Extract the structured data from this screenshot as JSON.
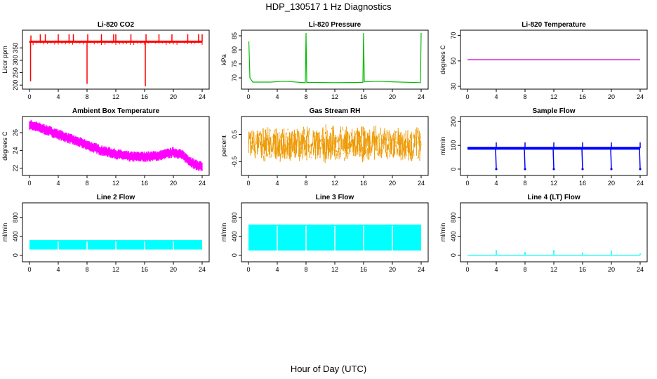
{
  "title": "HDP_130517  1 Hz Diagnostics",
  "xlabel": "Hour of Day (UTC)",
  "x_ticks": [
    0,
    4,
    8,
    12,
    16,
    20,
    24
  ],
  "colors": {
    "co2": "#ff0000",
    "pressure": "#00bb00",
    "li_temp": "#cc00cc",
    "box_temp": "#ff00ff",
    "rh": "#ee9900",
    "sample_flow": "#0000ff",
    "line_flows": "#00ffff",
    "axis": "#000000"
  },
  "chart_data": [
    {
      "type": "line",
      "title": "Li-820 CO2",
      "ylabel": "Licor ppm",
      "xlim": [
        0,
        24
      ],
      "ylim": [
        195,
        410
      ],
      "yticks": [
        200,
        250,
        300,
        350
      ],
      "color_key": "co2",
      "baseline": 375,
      "noise": 4,
      "spikes": [
        {
          "x": 0.15,
          "y": 215
        },
        {
          "x": 0.2,
          "y": 400
        },
        {
          "x": 1.5,
          "y": 405
        },
        {
          "x": 2.2,
          "y": 405
        },
        {
          "x": 4.0,
          "y": 405
        },
        {
          "x": 5.5,
          "y": 405
        },
        {
          "x": 6.1,
          "y": 405
        },
        {
          "x": 8.0,
          "y": 205
        },
        {
          "x": 8.1,
          "y": 405
        },
        {
          "x": 10.0,
          "y": 405
        },
        {
          "x": 11.7,
          "y": 405
        },
        {
          "x": 12.0,
          "y": 405
        },
        {
          "x": 14.1,
          "y": 405
        },
        {
          "x": 16.1,
          "y": 195
        },
        {
          "x": 16.2,
          "y": 405
        },
        {
          "x": 18.0,
          "y": 405
        },
        {
          "x": 19.8,
          "y": 405
        },
        {
          "x": 22.0,
          "y": 405
        },
        {
          "x": 23.5,
          "y": 405
        },
        {
          "x": 24.0,
          "y": 405
        }
      ]
    },
    {
      "type": "line",
      "title": "Li-820 Pressure",
      "ylabel": "kPa",
      "xlim": [
        0,
        24
      ],
      "ylim": [
        67,
        86
      ],
      "yticks": [
        70,
        75,
        80,
        85
      ],
      "color_key": "pressure",
      "series": [
        {
          "x": 0.05,
          "y": 83
        },
        {
          "x": 0.2,
          "y": 70
        },
        {
          "x": 0.6,
          "y": 68.5
        },
        {
          "x": 3.0,
          "y": 68.5
        },
        {
          "x": 5.0,
          "y": 68.8
        },
        {
          "x": 7.9,
          "y": 68.3
        },
        {
          "x": 8.0,
          "y": 86
        },
        {
          "x": 8.1,
          "y": 68.4
        },
        {
          "x": 12.0,
          "y": 68.3
        },
        {
          "x": 15.9,
          "y": 68.4
        },
        {
          "x": 16.0,
          "y": 86
        },
        {
          "x": 16.1,
          "y": 68.6
        },
        {
          "x": 18.0,
          "y": 68.8
        },
        {
          "x": 20.0,
          "y": 68.6
        },
        {
          "x": 23.9,
          "y": 68.3
        },
        {
          "x": 24.0,
          "y": 86
        }
      ]
    },
    {
      "type": "line",
      "title": "Li-820 Temperature",
      "ylabel": "degrees C",
      "xlim": [
        0,
        24
      ],
      "ylim": [
        30,
        72
      ],
      "yticks": [
        30,
        50,
        70
      ],
      "color_key": "li_temp",
      "series": [
        {
          "x": 0,
          "y": 51
        },
        {
          "x": 24,
          "y": 51
        }
      ]
    },
    {
      "type": "line",
      "title": "Ambient Box Temperature",
      "ylabel": "degrees C",
      "xlim": [
        0,
        24
      ],
      "ylim": [
        21.5,
        27.5
      ],
      "yticks": [
        22,
        24,
        26
      ],
      "color_key": "box_temp",
      "band": 0.45,
      "series": [
        {
          "x": 0,
          "y": 26.9
        },
        {
          "x": 2,
          "y": 26.4
        },
        {
          "x": 4,
          "y": 25.8
        },
        {
          "x": 6,
          "y": 25.2
        },
        {
          "x": 8,
          "y": 24.6
        },
        {
          "x": 10,
          "y": 24.0
        },
        {
          "x": 12,
          "y": 23.6
        },
        {
          "x": 14,
          "y": 23.3
        },
        {
          "x": 16,
          "y": 23.3
        },
        {
          "x": 18,
          "y": 23.4
        },
        {
          "x": 20,
          "y": 23.8
        },
        {
          "x": 21,
          "y": 23.6
        },
        {
          "x": 22,
          "y": 23.0
        },
        {
          "x": 23,
          "y": 22.4
        },
        {
          "x": 24,
          "y": 22.2
        }
      ]
    },
    {
      "type": "line",
      "title": "Gas Stream RH",
      "ylabel": "percent",
      "xlim": [
        0,
        24
      ],
      "ylim": [
        -0.9,
        1.05
      ],
      "yticks": [
        -0.5,
        0.5
      ],
      "color_key": "rh",
      "center": 0.15,
      "spread": 0.55
    },
    {
      "type": "line",
      "title": "Sample Flow",
      "ylabel": "ml/min",
      "xlim": [
        0,
        24
      ],
      "ylim": [
        -15,
        210
      ],
      "yticks": [
        0,
        100,
        200
      ],
      "color_key": "sample_flow",
      "baseline": 88,
      "dips": [
        {
          "x": 4,
          "y": 0
        },
        {
          "x": 8,
          "y": 0
        },
        {
          "x": 12,
          "y": 0
        },
        {
          "x": 16,
          "y": 0
        },
        {
          "x": 20,
          "y": 0
        },
        {
          "x": 24,
          "y": 0
        }
      ]
    },
    {
      "type": "area",
      "title": "Line 2 Flow",
      "ylabel": "ml/min",
      "xlim": [
        0,
        24
      ],
      "ylim": [
        -80,
        1050
      ],
      "yticks": [
        0,
        400,
        800
      ],
      "color_key": "line_flows",
      "lower": 120,
      "upper": 320,
      "gaps": [
        4,
        8,
        12,
        16,
        20
      ]
    },
    {
      "type": "area",
      "title": "Line 3 Flow",
      "ylabel": "ml/min",
      "xlim": [
        0,
        24
      ],
      "ylim": [
        -80,
        1050
      ],
      "yticks": [
        0,
        400,
        800
      ],
      "color_key": "line_flows",
      "lower": 100,
      "upper": 650,
      "gaps": [
        4,
        8,
        12,
        16,
        20
      ]
    },
    {
      "type": "line",
      "title": "Line 4 (LT) Flow",
      "ylabel": "ml/min",
      "xlim": [
        0,
        24
      ],
      "ylim": [
        -80,
        1050
      ],
      "yticks": [
        0,
        400,
        800
      ],
      "color_key": "line_flows",
      "baseline": 0,
      "spikes": [
        {
          "x": 4,
          "y": 110
        },
        {
          "x": 8,
          "y": 70
        },
        {
          "x": 12,
          "y": 110
        },
        {
          "x": 16,
          "y": 60
        },
        {
          "x": 20,
          "y": 100
        },
        {
          "x": 24,
          "y": 40
        }
      ]
    }
  ]
}
